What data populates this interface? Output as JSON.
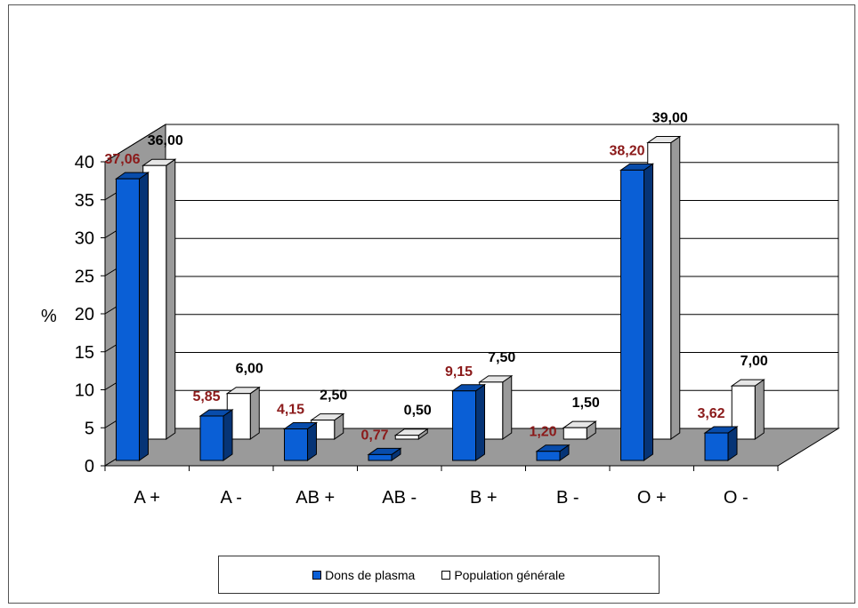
{
  "chart_data": {
    "type": "bar",
    "title": "",
    "xlabel": "",
    "ylabel": "%",
    "ylim": [
      0,
      40
    ],
    "yticks": [
      "0",
      "5",
      "10",
      "15",
      "20",
      "25",
      "30",
      "35",
      "40"
    ],
    "categories": [
      "A +",
      "A -",
      "AB +",
      "AB -",
      "B +",
      "B -",
      "O +",
      "O -"
    ],
    "series": [
      {
        "name": "Dons de plasma",
        "values": [
          37.06,
          5.85,
          4.15,
          0.77,
          9.15,
          1.2,
          38.2,
          3.62
        ],
        "labels": [
          "37,06",
          "5,85",
          "4,15",
          "0,77",
          "9,15",
          "1,20",
          "38,20",
          "3,62"
        ],
        "color": "#0a5fd6",
        "label_color": "#8b1a1a"
      },
      {
        "name": "Population générale",
        "values": [
          36.0,
          6.0,
          2.5,
          0.5,
          7.5,
          1.5,
          39.0,
          7.0
        ],
        "labels": [
          "36,00",
          "6,00",
          "2,50",
          "0,50",
          "7,50",
          "1,50",
          "39,00",
          "7,00"
        ],
        "color": "#ffffff",
        "label_color": "#000000"
      }
    ],
    "grid": true,
    "legend_position": "bottom"
  }
}
